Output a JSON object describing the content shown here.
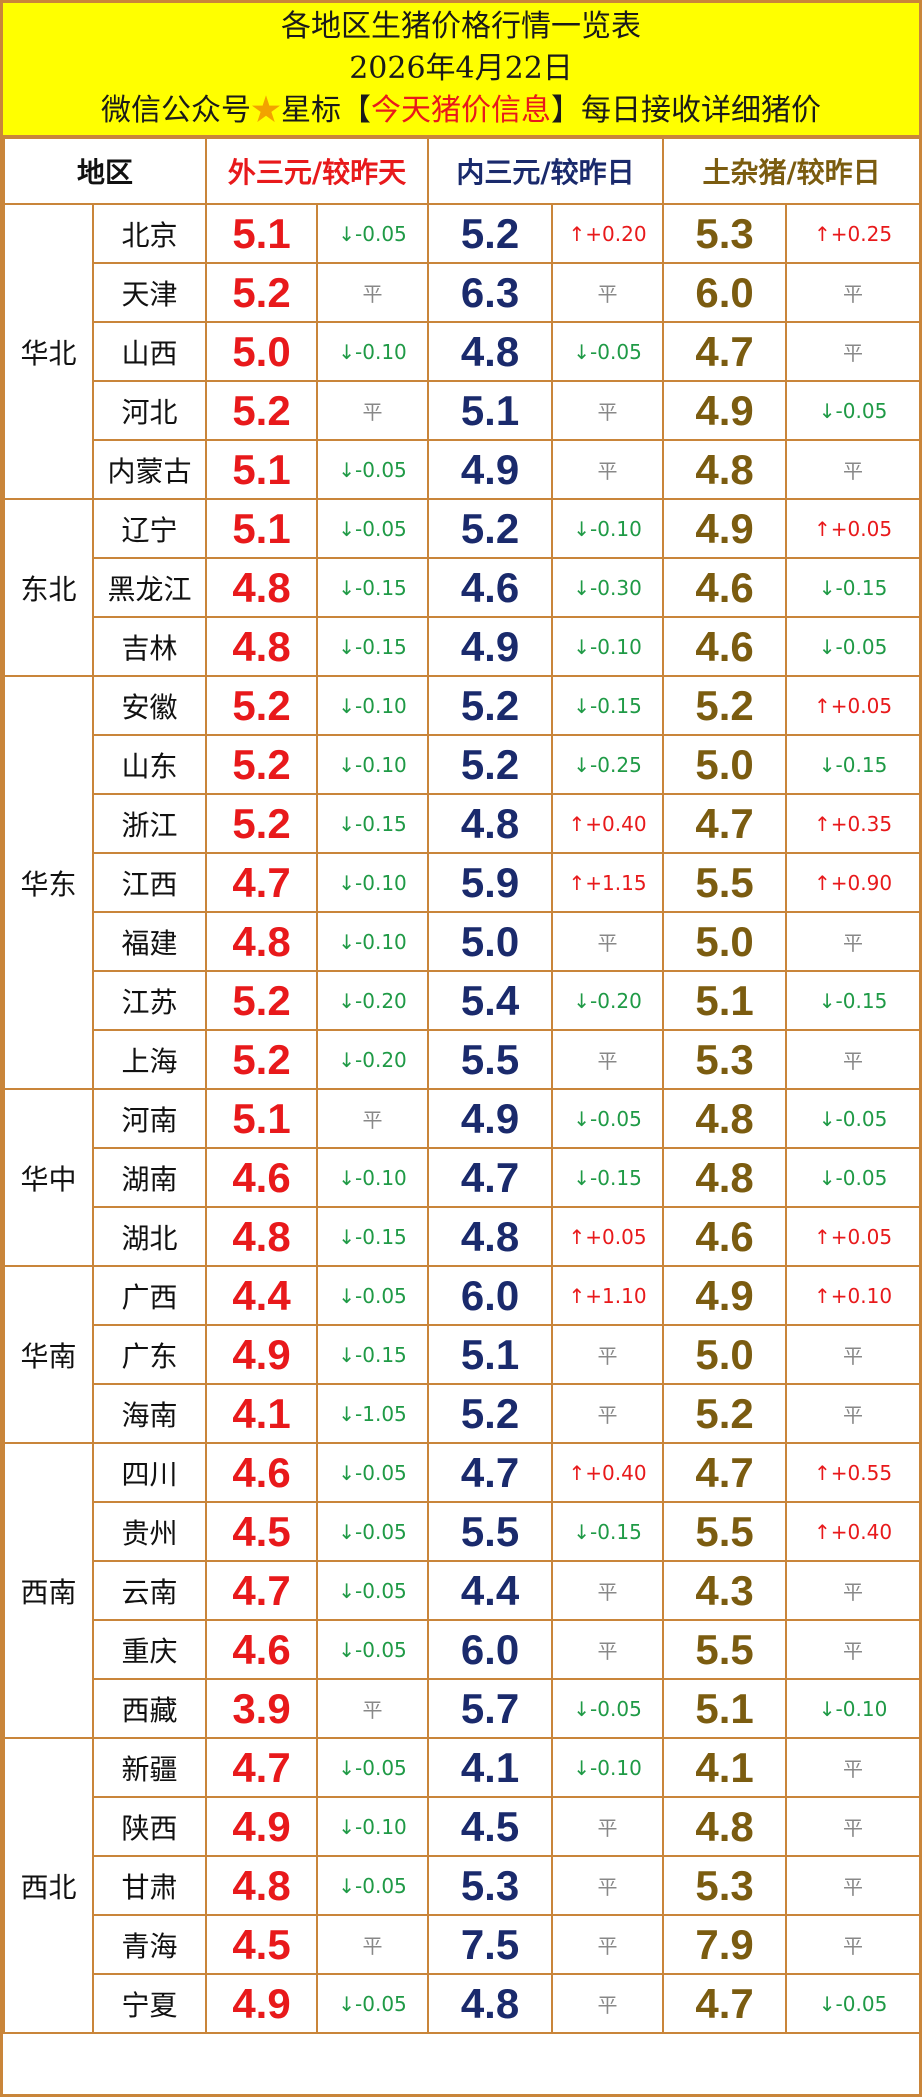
{
  "title": {
    "line1": "各地区生猪价格行情一览表",
    "line2": "2026年4月22日",
    "line3_prefix": "微信公众号",
    "line3_star": "★",
    "line3_mid": "星标【",
    "line3_highlight": "今天猪价信息",
    "line3_suffix": "】每日接收详细猪价"
  },
  "headers": {
    "region": "地区",
    "waisan": "外三元/较昨天",
    "neisan": "内三元/较昨日",
    "tuza": "土杂猪/较昨日"
  },
  "colors": {
    "waisan": "#e8191b",
    "neisan": "#1a2a6c",
    "tuza": "#7b5c10",
    "down": "#1f9a46",
    "up": "#e8191b",
    "border": "#c9853a",
    "title_bg": "#ffff00"
  },
  "regions": [
    {
      "name": "华北",
      "rows": [
        {
          "prov": "北京",
          "w": "5.1",
          "wc": "↓-0.05",
          "n": "5.2",
          "nc": "↑+0.20",
          "t": "5.3",
          "tc": "↑+0.25"
        },
        {
          "prov": "天津",
          "w": "5.2",
          "wc": "平",
          "n": "6.3",
          "nc": "平",
          "t": "6.0",
          "tc": "平"
        },
        {
          "prov": "山西",
          "w": "5.0",
          "wc": "↓-0.10",
          "n": "4.8",
          "nc": "↓-0.05",
          "t": "4.7",
          "tc": "平"
        },
        {
          "prov": "河北",
          "w": "5.2",
          "wc": "平",
          "n": "5.1",
          "nc": "平",
          "t": "4.9",
          "tc": "↓-0.05"
        },
        {
          "prov": "内蒙古",
          "w": "5.1",
          "wc": "↓-0.05",
          "n": "4.9",
          "nc": "平",
          "t": "4.8",
          "tc": "平"
        }
      ]
    },
    {
      "name": "东北",
      "rows": [
        {
          "prov": "辽宁",
          "w": "5.1",
          "wc": "↓-0.05",
          "n": "5.2",
          "nc": "↓-0.10",
          "t": "4.9",
          "tc": "↑+0.05"
        },
        {
          "prov": "黑龙江",
          "w": "4.8",
          "wc": "↓-0.15",
          "n": "4.6",
          "nc": "↓-0.30",
          "t": "4.6",
          "tc": "↓-0.15"
        },
        {
          "prov": "吉林",
          "w": "4.8",
          "wc": "↓-0.15",
          "n": "4.9",
          "nc": "↓-0.10",
          "t": "4.6",
          "tc": "↓-0.05"
        }
      ]
    },
    {
      "name": "华东",
      "rows": [
        {
          "prov": "安徽",
          "w": "5.2",
          "wc": "↓-0.10",
          "n": "5.2",
          "nc": "↓-0.15",
          "t": "5.2",
          "tc": "↑+0.05"
        },
        {
          "prov": "山东",
          "w": "5.2",
          "wc": "↓-0.10",
          "n": "5.2",
          "nc": "↓-0.25",
          "t": "5.0",
          "tc": "↓-0.15"
        },
        {
          "prov": "浙江",
          "w": "5.2",
          "wc": "↓-0.15",
          "n": "4.8",
          "nc": "↑+0.40",
          "t": "4.7",
          "tc": "↑+0.35"
        },
        {
          "prov": "江西",
          "w": "4.7",
          "wc": "↓-0.10",
          "n": "5.9",
          "nc": "↑+1.15",
          "t": "5.5",
          "tc": "↑+0.90"
        },
        {
          "prov": "福建",
          "w": "4.8",
          "wc": "↓-0.10",
          "n": "5.0",
          "nc": "平",
          "t": "5.0",
          "tc": "平"
        },
        {
          "prov": "江苏",
          "w": "5.2",
          "wc": "↓-0.20",
          "n": "5.4",
          "nc": "↓-0.20",
          "t": "5.1",
          "tc": "↓-0.15"
        },
        {
          "prov": "上海",
          "w": "5.2",
          "wc": "↓-0.20",
          "n": "5.5",
          "nc": "平",
          "t": "5.3",
          "tc": "平"
        }
      ]
    },
    {
      "name": "华中",
      "rows": [
        {
          "prov": "河南",
          "w": "5.1",
          "wc": "平",
          "n": "4.9",
          "nc": "↓-0.05",
          "t": "4.8",
          "tc": "↓-0.05"
        },
        {
          "prov": "湖南",
          "w": "4.6",
          "wc": "↓-0.10",
          "n": "4.7",
          "nc": "↓-0.15",
          "t": "4.8",
          "tc": "↓-0.05"
        },
        {
          "prov": "湖北",
          "w": "4.8",
          "wc": "↓-0.15",
          "n": "4.8",
          "nc": "↑+0.05",
          "t": "4.6",
          "tc": "↑+0.05"
        }
      ]
    },
    {
      "name": "华南",
      "rows": [
        {
          "prov": "广西",
          "w": "4.4",
          "wc": "↓-0.05",
          "n": "6.0",
          "nc": "↑+1.10",
          "t": "4.9",
          "tc": "↑+0.10"
        },
        {
          "prov": "广东",
          "w": "4.9",
          "wc": "↓-0.15",
          "n": "5.1",
          "nc": "平",
          "t": "5.0",
          "tc": "平"
        },
        {
          "prov": "海南",
          "w": "4.1",
          "wc": "↓-1.05",
          "n": "5.2",
          "nc": "平",
          "t": "5.2",
          "tc": "平"
        }
      ]
    },
    {
      "name": "西南",
      "rows": [
        {
          "prov": "四川",
          "w": "4.6",
          "wc": "↓-0.05",
          "n": "4.7",
          "nc": "↑+0.40",
          "t": "4.7",
          "tc": "↑+0.55"
        },
        {
          "prov": "贵州",
          "w": "4.5",
          "wc": "↓-0.05",
          "n": "5.5",
          "nc": "↓-0.15",
          "t": "5.5",
          "tc": "↑+0.40"
        },
        {
          "prov": "云南",
          "w": "4.7",
          "wc": "↓-0.05",
          "n": "4.4",
          "nc": "平",
          "t": "4.3",
          "tc": "平"
        },
        {
          "prov": "重庆",
          "w": "4.6",
          "wc": "↓-0.05",
          "n": "6.0",
          "nc": "平",
          "t": "5.5",
          "tc": "平"
        },
        {
          "prov": "西藏",
          "w": "3.9",
          "wc": "平",
          "n": "5.7",
          "nc": "↓-0.05",
          "t": "5.1",
          "tc": "↓-0.10"
        }
      ]
    },
    {
      "name": "西北",
      "rows": [
        {
          "prov": "新疆",
          "w": "4.7",
          "wc": "↓-0.05",
          "n": "4.1",
          "nc": "↓-0.10",
          "t": "4.1",
          "tc": "平"
        },
        {
          "prov": "陕西",
          "w": "4.9",
          "wc": "↓-0.10",
          "n": "4.5",
          "nc": "平",
          "t": "4.8",
          "tc": "平"
        },
        {
          "prov": "甘肃",
          "w": "4.8",
          "wc": "↓-0.05",
          "n": "5.3",
          "nc": "平",
          "t": "5.3",
          "tc": "平"
        },
        {
          "prov": "青海",
          "w": "4.5",
          "wc": "平",
          "n": "7.5",
          "nc": "平",
          "t": "7.9",
          "tc": "平"
        },
        {
          "prov": "宁夏",
          "w": "4.9",
          "wc": "↓-0.05",
          "n": "4.8",
          "nc": "平",
          "t": "4.7",
          "tc": "↓-0.05"
        }
      ]
    }
  ]
}
